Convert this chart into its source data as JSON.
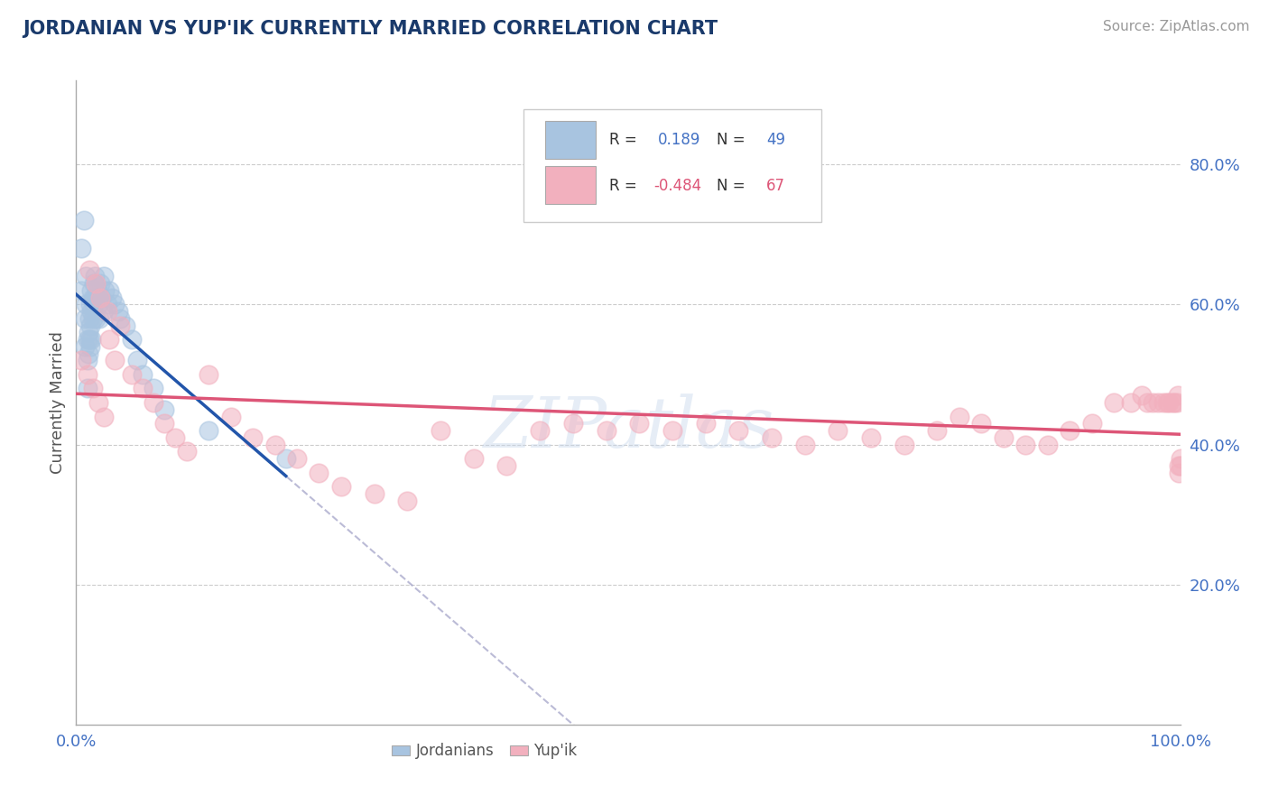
{
  "title": "JORDANIAN VS YUP'IK CURRENTLY MARRIED CORRELATION CHART",
  "source_text": "Source: ZipAtlas.com",
  "ylabel": "Currently Married",
  "x_min": 0.0,
  "x_max": 1.0,
  "y_min": 0.0,
  "y_max": 0.92,
  "yticks": [
    0.2,
    0.4,
    0.6,
    0.8
  ],
  "ytick_labels": [
    "20.0%",
    "40.0%",
    "60.0%",
    "80.0%"
  ],
  "xticks": [
    0.0,
    1.0
  ],
  "xtick_labels": [
    "0.0%",
    "100.0%"
  ],
  "title_color": "#1a3a6b",
  "axis_label_color": "#555555",
  "tick_label_color": "#4472c4",
  "source_color": "#999999",
  "blue_color": "#a8c4e0",
  "pink_color": "#f2b0be",
  "blue_line_color": "#2255aa",
  "pink_line_color": "#dd5577",
  "grey_dash_color": "#aaaacc",
  "legend_R1": "0.189",
  "legend_N1": "49",
  "legend_R2": "-0.484",
  "legend_N2": "67",
  "legend_label1": "Jordanians",
  "legend_label2": "Yup'ik",
  "jordanians_x": [
    0.005,
    0.005,
    0.007,
    0.008,
    0.008,
    0.009,
    0.009,
    0.01,
    0.01,
    0.01,
    0.011,
    0.011,
    0.012,
    0.012,
    0.013,
    0.013,
    0.013,
    0.014,
    0.014,
    0.014,
    0.015,
    0.015,
    0.016,
    0.016,
    0.017,
    0.017,
    0.018,
    0.019,
    0.02,
    0.021,
    0.022,
    0.023,
    0.024,
    0.025,
    0.026,
    0.028,
    0.03,
    0.032,
    0.035,
    0.038,
    0.04,
    0.045,
    0.05,
    0.055,
    0.06,
    0.07,
    0.08,
    0.12,
    0.19
  ],
  "jordanians_y": [
    0.68,
    0.62,
    0.72,
    0.58,
    0.54,
    0.64,
    0.6,
    0.55,
    0.52,
    0.48,
    0.56,
    0.53,
    0.58,
    0.55,
    0.6,
    0.57,
    0.54,
    0.62,
    0.59,
    0.55,
    0.61,
    0.58,
    0.63,
    0.6,
    0.64,
    0.61,
    0.58,
    0.62,
    0.6,
    0.58,
    0.63,
    0.61,
    0.59,
    0.64,
    0.62,
    0.6,
    0.62,
    0.61,
    0.6,
    0.59,
    0.58,
    0.57,
    0.55,
    0.52,
    0.5,
    0.48,
    0.45,
    0.42,
    0.38
  ],
  "yupik_x": [
    0.005,
    0.01,
    0.012,
    0.015,
    0.018,
    0.02,
    0.022,
    0.025,
    0.028,
    0.03,
    0.035,
    0.04,
    0.05,
    0.06,
    0.07,
    0.08,
    0.09,
    0.1,
    0.12,
    0.14,
    0.16,
    0.18,
    0.2,
    0.22,
    0.24,
    0.27,
    0.3,
    0.33,
    0.36,
    0.39,
    0.42,
    0.45,
    0.48,
    0.51,
    0.54,
    0.57,
    0.6,
    0.63,
    0.66,
    0.69,
    0.72,
    0.75,
    0.78,
    0.8,
    0.82,
    0.84,
    0.86,
    0.88,
    0.9,
    0.92,
    0.94,
    0.955,
    0.965,
    0.97,
    0.975,
    0.98,
    0.985,
    0.988,
    0.99,
    0.993,
    0.995,
    0.997,
    0.998,
    0.999,
    0.999,
    1.0,
    1.0
  ],
  "yupik_y": [
    0.52,
    0.5,
    0.65,
    0.48,
    0.63,
    0.46,
    0.61,
    0.44,
    0.59,
    0.55,
    0.52,
    0.57,
    0.5,
    0.48,
    0.46,
    0.43,
    0.41,
    0.39,
    0.5,
    0.44,
    0.41,
    0.4,
    0.38,
    0.36,
    0.34,
    0.33,
    0.32,
    0.42,
    0.38,
    0.37,
    0.42,
    0.43,
    0.42,
    0.43,
    0.42,
    0.43,
    0.42,
    0.41,
    0.4,
    0.42,
    0.41,
    0.4,
    0.42,
    0.44,
    0.43,
    0.41,
    0.4,
    0.4,
    0.42,
    0.43,
    0.46,
    0.46,
    0.47,
    0.46,
    0.46,
    0.46,
    0.46,
    0.46,
    0.46,
    0.46,
    0.46,
    0.46,
    0.47,
    0.36,
    0.37,
    0.37,
    0.38
  ]
}
